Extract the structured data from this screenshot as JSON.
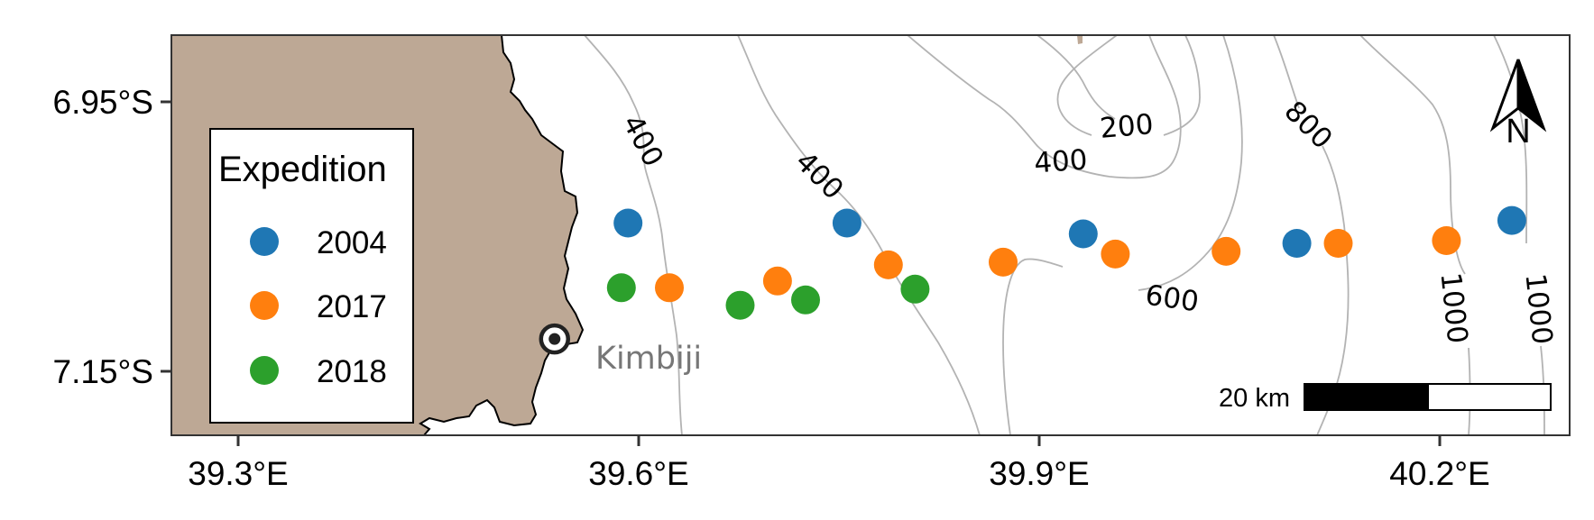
{
  "map": {
    "x_ticks": [
      "39.3°E",
      "39.6°E",
      "39.9°E",
      "40.2°E"
    ],
    "y_ticks": [
      "6.95°S",
      "7.15°S"
    ],
    "place_label": "Kimbiji",
    "scale_bar_label": "20 km",
    "north_arrow_label": "N",
    "land_color": "#bda895",
    "contour_color": "#b3b3b3"
  },
  "contour_labels": [
    "400",
    "400",
    "200",
    "400",
    "800",
    "600",
    "1000",
    "1000"
  ],
  "legend": {
    "title": "Expedition",
    "entries": [
      {
        "label": "2004",
        "color": "#1f77b4"
      },
      {
        "label": "2017",
        "color": "#ff7f0e"
      },
      {
        "label": "2018",
        "color": "#2ca02c"
      }
    ]
  },
  "stations": [
    {
      "lon": 39.592,
      "lat": -7.04,
      "year": "2004"
    },
    {
      "lon": 39.756,
      "lat": -7.04,
      "year": "2004"
    },
    {
      "lon": 39.933,
      "lat": -7.048,
      "year": "2004"
    },
    {
      "lon": 40.093,
      "lat": -7.055,
      "year": "2004"
    },
    {
      "lon": 40.254,
      "lat": -7.038,
      "year": "2004"
    },
    {
      "lon": 39.623,
      "lat": -7.088,
      "year": "2017"
    },
    {
      "lon": 39.704,
      "lat": -7.083,
      "year": "2017"
    },
    {
      "lon": 39.787,
      "lat": -7.071,
      "year": "2017"
    },
    {
      "lon": 39.873,
      "lat": -7.069,
      "year": "2017"
    },
    {
      "lon": 39.957,
      "lat": -7.063,
      "year": "2017"
    },
    {
      "lon": 40.04,
      "lat": -7.061,
      "year": "2017"
    },
    {
      "lon": 40.124,
      "lat": -7.055,
      "year": "2017"
    },
    {
      "lon": 40.205,
      "lat": -7.053,
      "year": "2017"
    },
    {
      "lon": 39.587,
      "lat": -7.088,
      "year": "2018"
    },
    {
      "lon": 39.676,
      "lat": -7.101,
      "year": "2018"
    },
    {
      "lon": 39.725,
      "lat": -7.097,
      "year": "2018"
    },
    {
      "lon": 39.807,
      "lat": -7.089,
      "year": "2018"
    }
  ],
  "site": {
    "lon": 39.537,
    "lat": -7.126
  }
}
